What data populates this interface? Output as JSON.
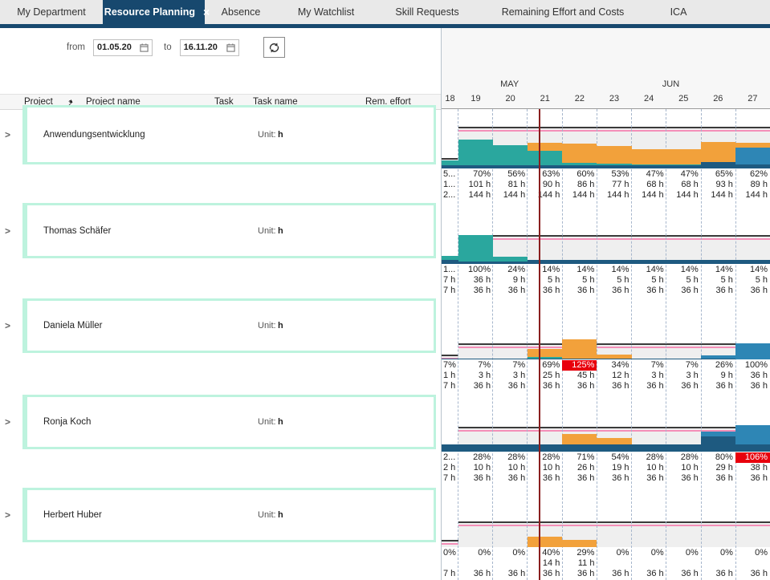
{
  "tabs": [
    {
      "label": "My Department",
      "active": false
    },
    {
      "label": "Resource Planning",
      "active": true
    },
    {
      "label": "Absence",
      "active": false
    },
    {
      "label": "My Watchlist",
      "active": false
    },
    {
      "label": "Skill Requests",
      "active": false
    },
    {
      "label": "Remaining Effort and Costs",
      "active": false
    },
    {
      "label": "ICA",
      "active": false
    }
  ],
  "filters": {
    "from_label": "from",
    "from_value": "01.05.20",
    "to_label": "to",
    "to_value": "16.11.20",
    "refresh_icon": "sync-icon",
    "calendar_icon": "calendar-icon"
  },
  "table": {
    "columns": [
      "Project",
      "Project name",
      "Task",
      "Task name",
      "Rem. effort"
    ],
    "sort_badge": {
      "priority": "2",
      "direction_icon": "sort-asc-triangle",
      "glyph": "▲"
    },
    "rows": [
      {
        "name": "Anwendungsentwicklung",
        "unit_label": "Unit:",
        "unit_value": "h"
      },
      {
        "name": "Thomas Schäfer",
        "unit_label": "Unit:",
        "unit_value": "h"
      },
      {
        "name": "Daniela Müller",
        "unit_label": "Unit:",
        "unit_value": "h"
      },
      {
        "name": "Ronja Koch",
        "unit_label": "Unit:",
        "unit_value": "h"
      },
      {
        "name": "Herbert Huber",
        "unit_label": "Unit:",
        "unit_value": "h"
      }
    ]
  },
  "chart_data": {
    "type": "bar",
    "months": [
      {
        "label": "MAY",
        "center_pct": 20.7
      },
      {
        "label": "JUN",
        "center_pct": 69.8
      }
    ],
    "weeks": [
      "18",
      "19",
      "20",
      "21",
      "22",
      "23",
      "24",
      "25",
      "26",
      "27"
    ],
    "colors": {
      "teal": "#2aa79e",
      "orange": "#f2a13b",
      "steel": "#2e86b5",
      "navy": "#1e5a80",
      "overload_bg": "#e8000d",
      "capacity_line": "#3a3a3a",
      "limit_line": "#f48fb8",
      "today_line": "#8a1e1e",
      "card_border": "#bdf3de",
      "tab_active": "#17486e"
    },
    "sections": [
      {
        "row": "Anwendungsentwicklung",
        "bars": [
          [
            [
              "navy",
              8
            ],
            [
              "teal",
              12
            ]
          ],
          [
            [
              "navy",
              8
            ],
            [
              "teal",
              62
            ]
          ],
          [
            [
              "navy",
              8
            ],
            [
              "teal",
              48
            ]
          ],
          [
            [
              "navy",
              8
            ],
            [
              "teal",
              35
            ],
            [
              "orange",
              20
            ]
          ],
          [
            [
              "navy",
              8
            ],
            [
              "teal",
              6
            ],
            [
              "orange",
              46
            ]
          ],
          [
            [
              "navy",
              8
            ],
            [
              "teal",
              3
            ],
            [
              "orange",
              42
            ]
          ],
          [
            [
              "navy",
              8
            ],
            [
              "teal",
              2
            ],
            [
              "orange",
              37
            ]
          ],
          [
            [
              "navy",
              8
            ],
            [
              "teal",
              2
            ],
            [
              "orange",
              37
            ]
          ],
          [
            [
              "navy",
              16
            ],
            [
              "orange",
              49
            ]
          ],
          [
            [
              "navy",
              10
            ],
            [
              "steel",
              40
            ],
            [
              "orange",
              12
            ]
          ]
        ],
        "values": [
          {
            "p": "5...",
            "h": "1...",
            "c": "2...",
            "over": false
          },
          {
            "p": "70%",
            "h": "101 h",
            "c": "144 h",
            "over": false
          },
          {
            "p": "56%",
            "h": "81 h",
            "c": "144 h",
            "over": false
          },
          {
            "p": "63%",
            "h": "90 h",
            "c": "144 h",
            "over": false
          },
          {
            "p": "60%",
            "h": "86 h",
            "c": "144 h",
            "over": false
          },
          {
            "p": "53%",
            "h": "77 h",
            "c": "144 h",
            "over": false
          },
          {
            "p": "47%",
            "h": "68 h",
            "c": "144 h",
            "over": false
          },
          {
            "p": "47%",
            "h": "68 h",
            "c": "144 h",
            "over": false
          },
          {
            "p": "65%",
            "h": "93 h",
            "c": "144 h",
            "over": false
          },
          {
            "p": "62%",
            "h": "89 h",
            "c": "144 h",
            "over": false
          }
        ]
      },
      {
        "row": "Thomas Schäfer",
        "bars": [
          [
            [
              "navy",
              14
            ],
            [
              "teal",
              14
            ]
          ],
          [
            [
              "navy",
              8
            ],
            [
              "teal",
              92
            ]
          ],
          [
            [
              "navy",
              8
            ],
            [
              "teal",
              16
            ]
          ],
          [
            [
              "navy",
              14
            ]
          ],
          [
            [
              "navy",
              14
            ]
          ],
          [
            [
              "navy",
              14
            ]
          ],
          [
            [
              "navy",
              14
            ]
          ],
          [
            [
              "navy",
              14
            ]
          ],
          [
            [
              "navy",
              14
            ]
          ],
          [
            [
              "navy",
              14
            ]
          ]
        ],
        "values": [
          {
            "p": "1...",
            "h": "7 h",
            "c": "7 h",
            "over": false
          },
          {
            "p": "100%",
            "h": "36 h",
            "c": "36 h",
            "over": false
          },
          {
            "p": "24%",
            "h": "9 h",
            "c": "36 h",
            "over": false
          },
          {
            "p": "14%",
            "h": "5 h",
            "c": "36 h",
            "over": false
          },
          {
            "p": "14%",
            "h": "5 h",
            "c": "36 h",
            "over": false
          },
          {
            "p": "14%",
            "h": "5 h",
            "c": "36 h",
            "over": false
          },
          {
            "p": "14%",
            "h": "5 h",
            "c": "36 h",
            "over": false
          },
          {
            "p": "14%",
            "h": "5 h",
            "c": "36 h",
            "over": false
          },
          {
            "p": "14%",
            "h": "5 h",
            "c": "36 h",
            "over": false
          },
          {
            "p": "14%",
            "h": "5 h",
            "c": "36 h",
            "over": false
          }
        ]
      },
      {
        "row": "Daniela Müller",
        "bars": [
          [
            [
              "navy",
              7
            ]
          ],
          [
            [
              "navy",
              7
            ]
          ],
          [
            [
              "navy",
              7
            ]
          ],
          [
            [
              "navy",
              7
            ],
            [
              "teal",
              10
            ],
            [
              "orange",
              52
            ]
          ],
          [
            [
              "navy",
              7
            ],
            [
              "orange",
              118
            ]
          ],
          [
            [
              "navy",
              7
            ],
            [
              "orange",
              27
            ]
          ],
          [
            [
              "navy",
              7
            ]
          ],
          [
            [
              "navy",
              7
            ]
          ],
          [
            [
              "navy",
              7
            ],
            [
              "steel",
              19
            ]
          ],
          [
            [
              "steel",
              100
            ]
          ]
        ],
        "values": [
          {
            "p": "7%",
            "h": "1 h",
            "c": "7 h",
            "over": false
          },
          {
            "p": "7%",
            "h": "3 h",
            "c": "36 h",
            "over": false
          },
          {
            "p": "7%",
            "h": "3 h",
            "c": "36 h",
            "over": false
          },
          {
            "p": "69%",
            "h": "25 h",
            "c": "36 h",
            "over": false
          },
          {
            "p": "125%",
            "h": "45 h",
            "c": "36 h",
            "over": true
          },
          {
            "p": "34%",
            "h": "12 h",
            "c": "36 h",
            "over": false
          },
          {
            "p": "7%",
            "h": "3 h",
            "c": "36 h",
            "over": false
          },
          {
            "p": "7%",
            "h": "3 h",
            "c": "36 h",
            "over": false
          },
          {
            "p": "26%",
            "h": "9 h",
            "c": "36 h",
            "over": false
          },
          {
            "p": "100%",
            "h": "36 h",
            "c": "36 h",
            "over": false
          }
        ]
      },
      {
        "row": "Ronja Koch",
        "bars": [
          [
            [
              "navy",
              28
            ]
          ],
          [
            [
              "navy",
              28
            ]
          ],
          [
            [
              "navy",
              28
            ]
          ],
          [
            [
              "navy",
              28
            ]
          ],
          [
            [
              "navy",
              28
            ],
            [
              "orange",
              43
            ]
          ],
          [
            [
              "navy",
              28
            ],
            [
              "orange",
              26
            ]
          ],
          [
            [
              "navy",
              28
            ]
          ],
          [
            [
              "navy",
              28
            ]
          ],
          [
            [
              "navy",
              60
            ],
            [
              "steel",
              20
            ]
          ],
          [
            [
              "navy",
              30
            ],
            [
              "steel",
              76
            ]
          ]
        ],
        "values": [
          {
            "p": "2...",
            "h": "2 h",
            "c": "7 h",
            "over": false
          },
          {
            "p": "28%",
            "h": "10 h",
            "c": "36 h",
            "over": false
          },
          {
            "p": "28%",
            "h": "10 h",
            "c": "36 h",
            "over": false
          },
          {
            "p": "28%",
            "h": "10 h",
            "c": "36 h",
            "over": false
          },
          {
            "p": "71%",
            "h": "26 h",
            "c": "36 h",
            "over": false
          },
          {
            "p": "54%",
            "h": "19 h",
            "c": "36 h",
            "over": false
          },
          {
            "p": "28%",
            "h": "10 h",
            "c": "36 h",
            "over": false
          },
          {
            "p": "28%",
            "h": "10 h",
            "c": "36 h",
            "over": false
          },
          {
            "p": "80%",
            "h": "29 h",
            "c": "36 h",
            "over": false
          },
          {
            "p": "106%",
            "h": "38 h",
            "c": "36 h",
            "over": true
          }
        ]
      },
      {
        "row": "Herbert Huber",
        "bars": [
          [],
          [],
          [],
          [
            [
              "orange",
              40
            ]
          ],
          [
            [
              "orange",
              29
            ]
          ],
          [],
          [],
          [],
          [],
          []
        ],
        "values": [
          {
            "p": "0%",
            "h": "",
            "c": "7 h",
            "over": false
          },
          {
            "p": "0%",
            "h": "",
            "c": "36 h",
            "over": false
          },
          {
            "p": "0%",
            "h": "",
            "c": "36 h",
            "over": false
          },
          {
            "p": "40%",
            "h": "14 h",
            "c": "36 h",
            "over": false
          },
          {
            "p": "29%",
            "h": "11 h",
            "c": "36 h",
            "over": false
          },
          {
            "p": "0%",
            "h": "",
            "c": "36 h",
            "over": false
          },
          {
            "p": "0%",
            "h": "",
            "c": "36 h",
            "over": false
          },
          {
            "p": "0%",
            "h": "",
            "c": "36 h",
            "over": false
          },
          {
            "p": "0%",
            "h": "",
            "c": "36 h",
            "over": false
          },
          {
            "p": "0%",
            "h": "",
            "c": "36 h",
            "over": false
          }
        ]
      }
    ]
  }
}
